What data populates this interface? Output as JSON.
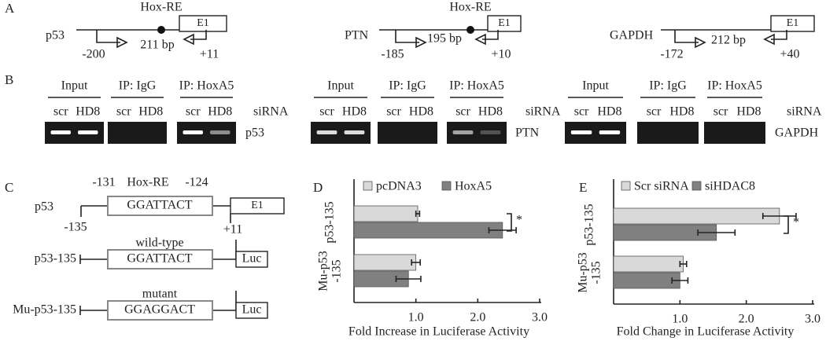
{
  "panel_a": {
    "label": "A",
    "genes": [
      {
        "name": "p53",
        "element": "Hox-RE",
        "exon": "E1",
        "product": "211 bp",
        "left": "-200",
        "right": "+11"
      },
      {
        "name": "PTN",
        "element": "Hox-RE",
        "exon": "E1",
        "product": "195 bp",
        "left": "-185",
        "right": "+10"
      },
      {
        "name": "GAPDH",
        "exon": "E1",
        "product": "212 bp",
        "left": "-172",
        "right": "+40"
      }
    ]
  },
  "panel_b": {
    "label": "B",
    "blots": [
      {
        "groups": [
          "Input",
          "IP: IgG",
          "IP: HoxA5"
        ],
        "lanes": [
          "scr",
          "HD8"
        ],
        "condition": "siRNA",
        "gene": "p53"
      },
      {
        "groups": [
          "Input",
          "IP: IgG",
          "IP: HoxA5"
        ],
        "lanes": [
          "scr",
          "HD8"
        ],
        "condition": "siRNA",
        "gene": "PTN"
      },
      {
        "groups": [
          "Input",
          "IP: IgG",
          "IP: HoxA5"
        ],
        "lanes": [
          "scr",
          "HD8"
        ],
        "condition": "siRNA",
        "gene": "GAPDH"
      }
    ]
  },
  "panel_c": {
    "label": "C",
    "gene": "p53",
    "element": "Hox-RE",
    "start": "-131",
    "end": "-124",
    "sequence": "GGATTACT",
    "exon": "E1",
    "left": "-135",
    "right": "+11",
    "constructs": [
      {
        "name": "p53-135",
        "type": "wild-type",
        "sequence": "GGATTACT",
        "reporter": "Luc"
      },
      {
        "name": "Mu-p53-135",
        "type": "mutant",
        "sequence": "GGAGGACT",
        "reporter": "Luc"
      }
    ]
  },
  "chart_data": [
    {
      "type": "bar",
      "orientation": "horizontal",
      "label": "D",
      "categories": [
        "p53-135",
        "Mu-p53 -135"
      ],
      "series": [
        {
          "name": "pcDNA3",
          "color": "#d9d9d9",
          "values": [
            1.03,
            1.0
          ],
          "errors": [
            0.03,
            0.07
          ]
        },
        {
          "name": "HoxA5",
          "color": "#808080",
          "values": [
            2.4,
            0.88
          ],
          "errors": [
            0.22,
            0.2
          ]
        }
      ],
      "xlabel": "Fold Increase in Luciferase Activity",
      "xlim": [
        0,
        3
      ],
      "xticks": [
        {
          "value": 1,
          "label": "1.0"
        },
        {
          "value": 2,
          "label": "2.0"
        },
        {
          "value": 3,
          "label": "3.0"
        }
      ],
      "annotation": "*",
      "legend": "top"
    },
    {
      "type": "bar",
      "orientation": "horizontal",
      "label": "E",
      "categories": [
        "p53-135",
        "Mu-p53 -135"
      ],
      "series": [
        {
          "name": "Scr siRNA",
          "color": "#d9d9d9",
          "values": [
            2.5,
            1.05
          ],
          "errors": [
            0.25,
            0.05
          ]
        },
        {
          "name": "siHDAC8",
          "color": "#808080",
          "values": [
            1.55,
            1.0
          ],
          "errors": [
            0.28,
            0.12
          ]
        }
      ],
      "xlabel": "Fold Change in Luciferase Activity",
      "xlim": [
        0,
        3
      ],
      "xticks": [
        {
          "value": 1,
          "label": "1.0"
        },
        {
          "value": 2,
          "label": "2.0"
        },
        {
          "value": 3,
          "label": "3.0"
        }
      ],
      "annotation": "*",
      "legend": "top"
    }
  ]
}
